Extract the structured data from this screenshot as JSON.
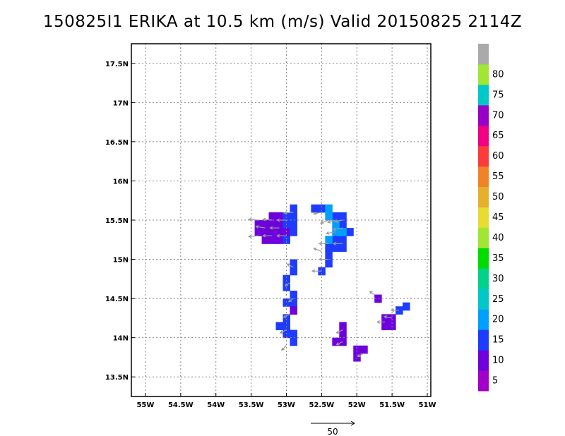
{
  "chart_data": {
    "type": "heatmap",
    "title": "150825I1 ERIKA at 10.5 km (m/s) Valid 20150825 2114Z",
    "x_tick_labels": [
      "55W",
      "54.5W",
      "54W",
      "53.5W",
      "53W",
      "52.5W",
      "52W",
      "51.5W",
      "51W"
    ],
    "x_tick_values": [
      -55,
      -54.5,
      -54,
      -53.5,
      -53,
      -52.5,
      -52,
      -51.5,
      -51
    ],
    "y_tick_labels": [
      "17.5N",
      "17N",
      "16.5N",
      "16N",
      "15.5N",
      "15N",
      "14.5N",
      "14N",
      "13.5N"
    ],
    "y_tick_values": [
      17.5,
      17,
      16.5,
      16,
      15.5,
      15,
      14.5,
      14,
      13.5
    ],
    "xlim": [
      -55.2,
      -50.95
    ],
    "ylim": [
      13.25,
      17.75
    ],
    "grid": true,
    "colorbar": {
      "labels": [
        "5",
        "10",
        "15",
        "20",
        "25",
        "30",
        "35",
        "40",
        "45",
        "50",
        "55",
        "60",
        "65",
        "70",
        "75",
        "80"
      ],
      "colors": [
        "#a000c8",
        "#6e00dc",
        "#1e3cff",
        "#00a0ff",
        "#00c8c8",
        "#00d28c",
        "#00dc00",
        "#a0e632",
        "#e6dc32",
        "#e6af2d",
        "#f08228",
        "#fa3c3c",
        "#f00082",
        "#9600c8",
        "#00c8c8",
        "#a0e632",
        "#aaaaaa"
      ]
    },
    "reference_vector_label": "50",
    "cells": [
      {
        "x": -53.4,
        "y": 15.45,
        "v": 6
      },
      {
        "x": -53.3,
        "y": 15.45,
        "v": 6
      },
      {
        "x": -53.2,
        "y": 15.45,
        "v": 6
      },
      {
        "x": -53.1,
        "y": 15.45,
        "v": 6
      },
      {
        "x": -53.4,
        "y": 15.35,
        "v": 6
      },
      {
        "x": -53.3,
        "y": 15.35,
        "v": 6
      },
      {
        "x": -53.2,
        "y": 15.35,
        "v": 6
      },
      {
        "x": -53.1,
        "y": 15.35,
        "v": 6
      },
      {
        "x": -53.0,
        "y": 15.35,
        "v": 6
      },
      {
        "x": -53.3,
        "y": 15.25,
        "v": 6
      },
      {
        "x": -53.2,
        "y": 15.25,
        "v": 6
      },
      {
        "x": -53.1,
        "y": 15.25,
        "v": 6
      },
      {
        "x": -53.2,
        "y": 15.55,
        "v": 6
      },
      {
        "x": -53.1,
        "y": 15.55,
        "v": 6
      },
      {
        "x": -53.0,
        "y": 15.55,
        "v": 11
      },
      {
        "x": -52.9,
        "y": 15.55,
        "v": 11
      },
      {
        "x": -53.0,
        "y": 15.45,
        "v": 11
      },
      {
        "x": -52.9,
        "y": 15.45,
        "v": 11
      },
      {
        "x": -52.9,
        "y": 15.65,
        "v": 11
      },
      {
        "x": -53.0,
        "y": 15.25,
        "v": 11
      },
      {
        "x": -52.9,
        "y": 15.35,
        "v": 11
      },
      {
        "x": -52.6,
        "y": 15.65,
        "v": 11
      },
      {
        "x": -52.5,
        "y": 15.65,
        "v": 11
      },
      {
        "x": -52.3,
        "y": 15.55,
        "v": 11
      },
      {
        "x": -52.2,
        "y": 15.55,
        "v": 11
      },
      {
        "x": -52.2,
        "y": 15.45,
        "v": 11
      },
      {
        "x": -52.1,
        "y": 15.35,
        "v": 11
      },
      {
        "x": -52.2,
        "y": 15.25,
        "v": 11
      },
      {
        "x": -52.3,
        "y": 15.25,
        "v": 11
      },
      {
        "x": -52.2,
        "y": 15.15,
        "v": 11
      },
      {
        "x": -52.3,
        "y": 15.15,
        "v": 11
      },
      {
        "x": -52.4,
        "y": 15.15,
        "v": 11
      },
      {
        "x": -52.4,
        "y": 15.05,
        "v": 11
      },
      {
        "x": -52.4,
        "y": 14.95,
        "v": 11
      },
      {
        "x": -52.5,
        "y": 14.85,
        "v": 11
      },
      {
        "x": -52.4,
        "y": 15.65,
        "v": 16
      },
      {
        "x": -52.4,
        "y": 15.55,
        "v": 16
      },
      {
        "x": -52.3,
        "y": 15.45,
        "v": 16
      },
      {
        "x": -52.3,
        "y": 15.35,
        "v": 16
      },
      {
        "x": -52.2,
        "y": 15.35,
        "v": 16
      },
      {
        "x": -52.4,
        "y": 15.25,
        "v": 16
      },
      {
        "x": -52.9,
        "y": 14.95,
        "v": 11
      },
      {
        "x": -52.9,
        "y": 14.85,
        "v": 11
      },
      {
        "x": -53.0,
        "y": 14.75,
        "v": 11
      },
      {
        "x": -53.0,
        "y": 14.65,
        "v": 11
      },
      {
        "x": -52.9,
        "y": 14.55,
        "v": 11
      },
      {
        "x": -53.0,
        "y": 14.45,
        "v": 11
      },
      {
        "x": -52.9,
        "y": 14.45,
        "v": 11
      },
      {
        "x": -52.9,
        "y": 14.35,
        "v": 11
      },
      {
        "x": -53.0,
        "y": 14.25,
        "v": 11
      },
      {
        "x": -53.0,
        "y": 14.15,
        "v": 11
      },
      {
        "x": -52.9,
        "y": 14.05,
        "v": 11
      },
      {
        "x": -52.9,
        "y": 13.95,
        "v": 11
      },
      {
        "x": -53.0,
        "y": 14.05,
        "v": 11
      },
      {
        "x": -53.1,
        "y": 14.15,
        "v": 11
      },
      {
        "x": -52.9,
        "y": 14.35,
        "v": 6
      },
      {
        "x": -52.2,
        "y": 14.15,
        "v": 6
      },
      {
        "x": -52.2,
        "y": 14.05,
        "v": 6
      },
      {
        "x": -52.3,
        "y": 13.95,
        "v": 6
      },
      {
        "x": -52.2,
        "y": 13.95,
        "v": 6
      },
      {
        "x": -52.0,
        "y": 13.85,
        "v": 6
      },
      {
        "x": -52.0,
        "y": 13.75,
        "v": 6
      },
      {
        "x": -51.9,
        "y": 13.85,
        "v": 6
      },
      {
        "x": -51.7,
        "y": 14.5,
        "v": 6
      },
      {
        "x": -51.6,
        "y": 14.25,
        "v": 6
      },
      {
        "x": -51.5,
        "y": 14.25,
        "v": 6
      },
      {
        "x": -51.6,
        "y": 14.15,
        "v": 6
      },
      {
        "x": -51.5,
        "y": 14.15,
        "v": 6
      },
      {
        "x": -51.4,
        "y": 14.35,
        "v": 11
      },
      {
        "x": -51.3,
        "y": 14.4,
        "v": 11
      }
    ],
    "vectors": [
      {
        "x": -53.4,
        "y": 15.5,
        "u": -12,
        "w": 1
      },
      {
        "x": -53.3,
        "y": 15.4,
        "u": -12,
        "w": 2
      },
      {
        "x": -53.4,
        "y": 15.3,
        "u": -12,
        "w": -1
      },
      {
        "x": -53.2,
        "y": 15.5,
        "u": -12,
        "w": 1
      },
      {
        "x": -53.1,
        "y": 15.4,
        "u": -12,
        "w": 0
      },
      {
        "x": -53.0,
        "y": 15.5,
        "u": -12,
        "w": 0
      },
      {
        "x": -52.9,
        "y": 15.6,
        "u": -12,
        "w": -1
      },
      {
        "x": -53.2,
        "y": 15.3,
        "u": -12,
        "w": 0
      },
      {
        "x": -53.0,
        "y": 15.3,
        "u": -12,
        "w": 0
      },
      {
        "x": -52.5,
        "y": 15.6,
        "u": -10,
        "w": -2
      },
      {
        "x": -52.4,
        "y": 15.5,
        "u": -10,
        "w": -4
      },
      {
        "x": -52.3,
        "y": 15.5,
        "u": -10,
        "w": -3
      },
      {
        "x": -52.2,
        "y": 15.5,
        "u": -10,
        "w": -2
      },
      {
        "x": -52.3,
        "y": 15.35,
        "u": -12,
        "w": -2
      },
      {
        "x": -52.2,
        "y": 15.4,
        "u": -12,
        "w": -2
      },
      {
        "x": -52.2,
        "y": 15.2,
        "u": -12,
        "w": 0
      },
      {
        "x": -52.4,
        "y": 15.2,
        "u": -12,
        "w": 0
      },
      {
        "x": -52.4,
        "y": 15.0,
        "u": -12,
        "w": 0
      },
      {
        "x": -52.5,
        "y": 14.85,
        "u": -12,
        "w": 0
      },
      {
        "x": -52.5,
        "y": 15.1,
        "u": -10,
        "w": 4
      },
      {
        "x": -52.9,
        "y": 14.9,
        "u": -8,
        "w": 4
      },
      {
        "x": -52.95,
        "y": 14.7,
        "u": -6,
        "w": -4
      },
      {
        "x": -52.9,
        "y": 14.5,
        "u": -6,
        "w": -4
      },
      {
        "x": -52.95,
        "y": 14.3,
        "u": -8,
        "w": -4
      },
      {
        "x": -53.0,
        "y": 14.1,
        "u": -8,
        "w": -4
      },
      {
        "x": -53.0,
        "y": 13.9,
        "u": -6,
        "w": -6
      },
      {
        "x": -52.2,
        "y": 14.1,
        "u": -8,
        "w": -4
      },
      {
        "x": -52.2,
        "y": 13.95,
        "u": -8,
        "w": -4
      },
      {
        "x": -51.9,
        "y": 13.8,
        "u": -8,
        "w": -4
      },
      {
        "x": -51.6,
        "y": 14.2,
        "u": -10,
        "w": 0
      },
      {
        "x": -51.5,
        "y": 14.25,
        "u": -10,
        "w": 2
      },
      {
        "x": -51.75,
        "y": 14.55,
        "u": -6,
        "w": 4
      },
      {
        "x": -51.4,
        "y": 14.35,
        "u": -10,
        "w": 0
      }
    ]
  }
}
